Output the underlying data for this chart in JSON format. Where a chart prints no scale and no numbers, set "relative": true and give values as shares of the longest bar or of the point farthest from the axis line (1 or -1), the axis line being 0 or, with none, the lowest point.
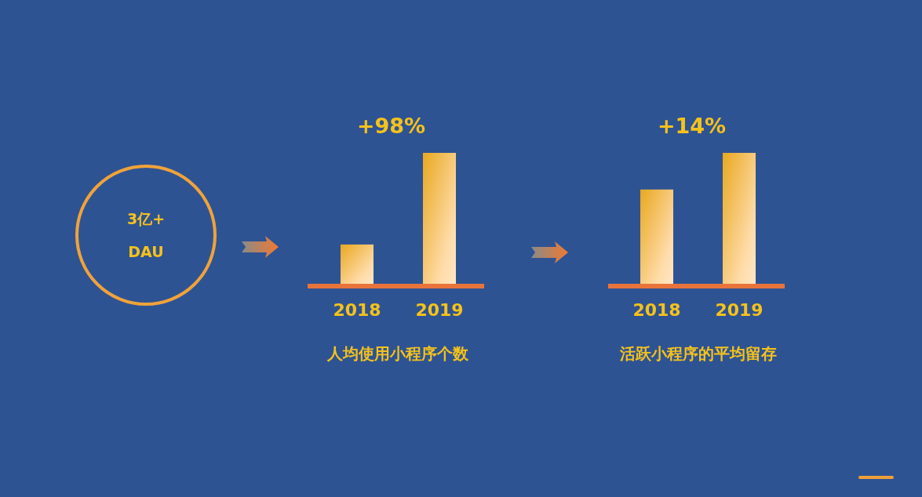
{
  "chart_data": [
    {
      "type": "other",
      "annotations": [
        "3亿+",
        "DAU"
      ]
    },
    {
      "type": "bar",
      "title": "+98%",
      "xlabel": "人均使用小程序个数",
      "categories": [
        "2018",
        "2019"
      ],
      "values": [
        0.3,
        1
      ],
      "color": "#e9a820",
      "relative": true
    },
    {
      "type": "bar",
      "title": "+14%",
      "xlabel": "活跃小程序的平均留存",
      "categories": [
        "2018",
        "2019"
      ],
      "values": [
        0.72,
        1
      ],
      "color": "#e9a820",
      "relative": true
    }
  ]
}
